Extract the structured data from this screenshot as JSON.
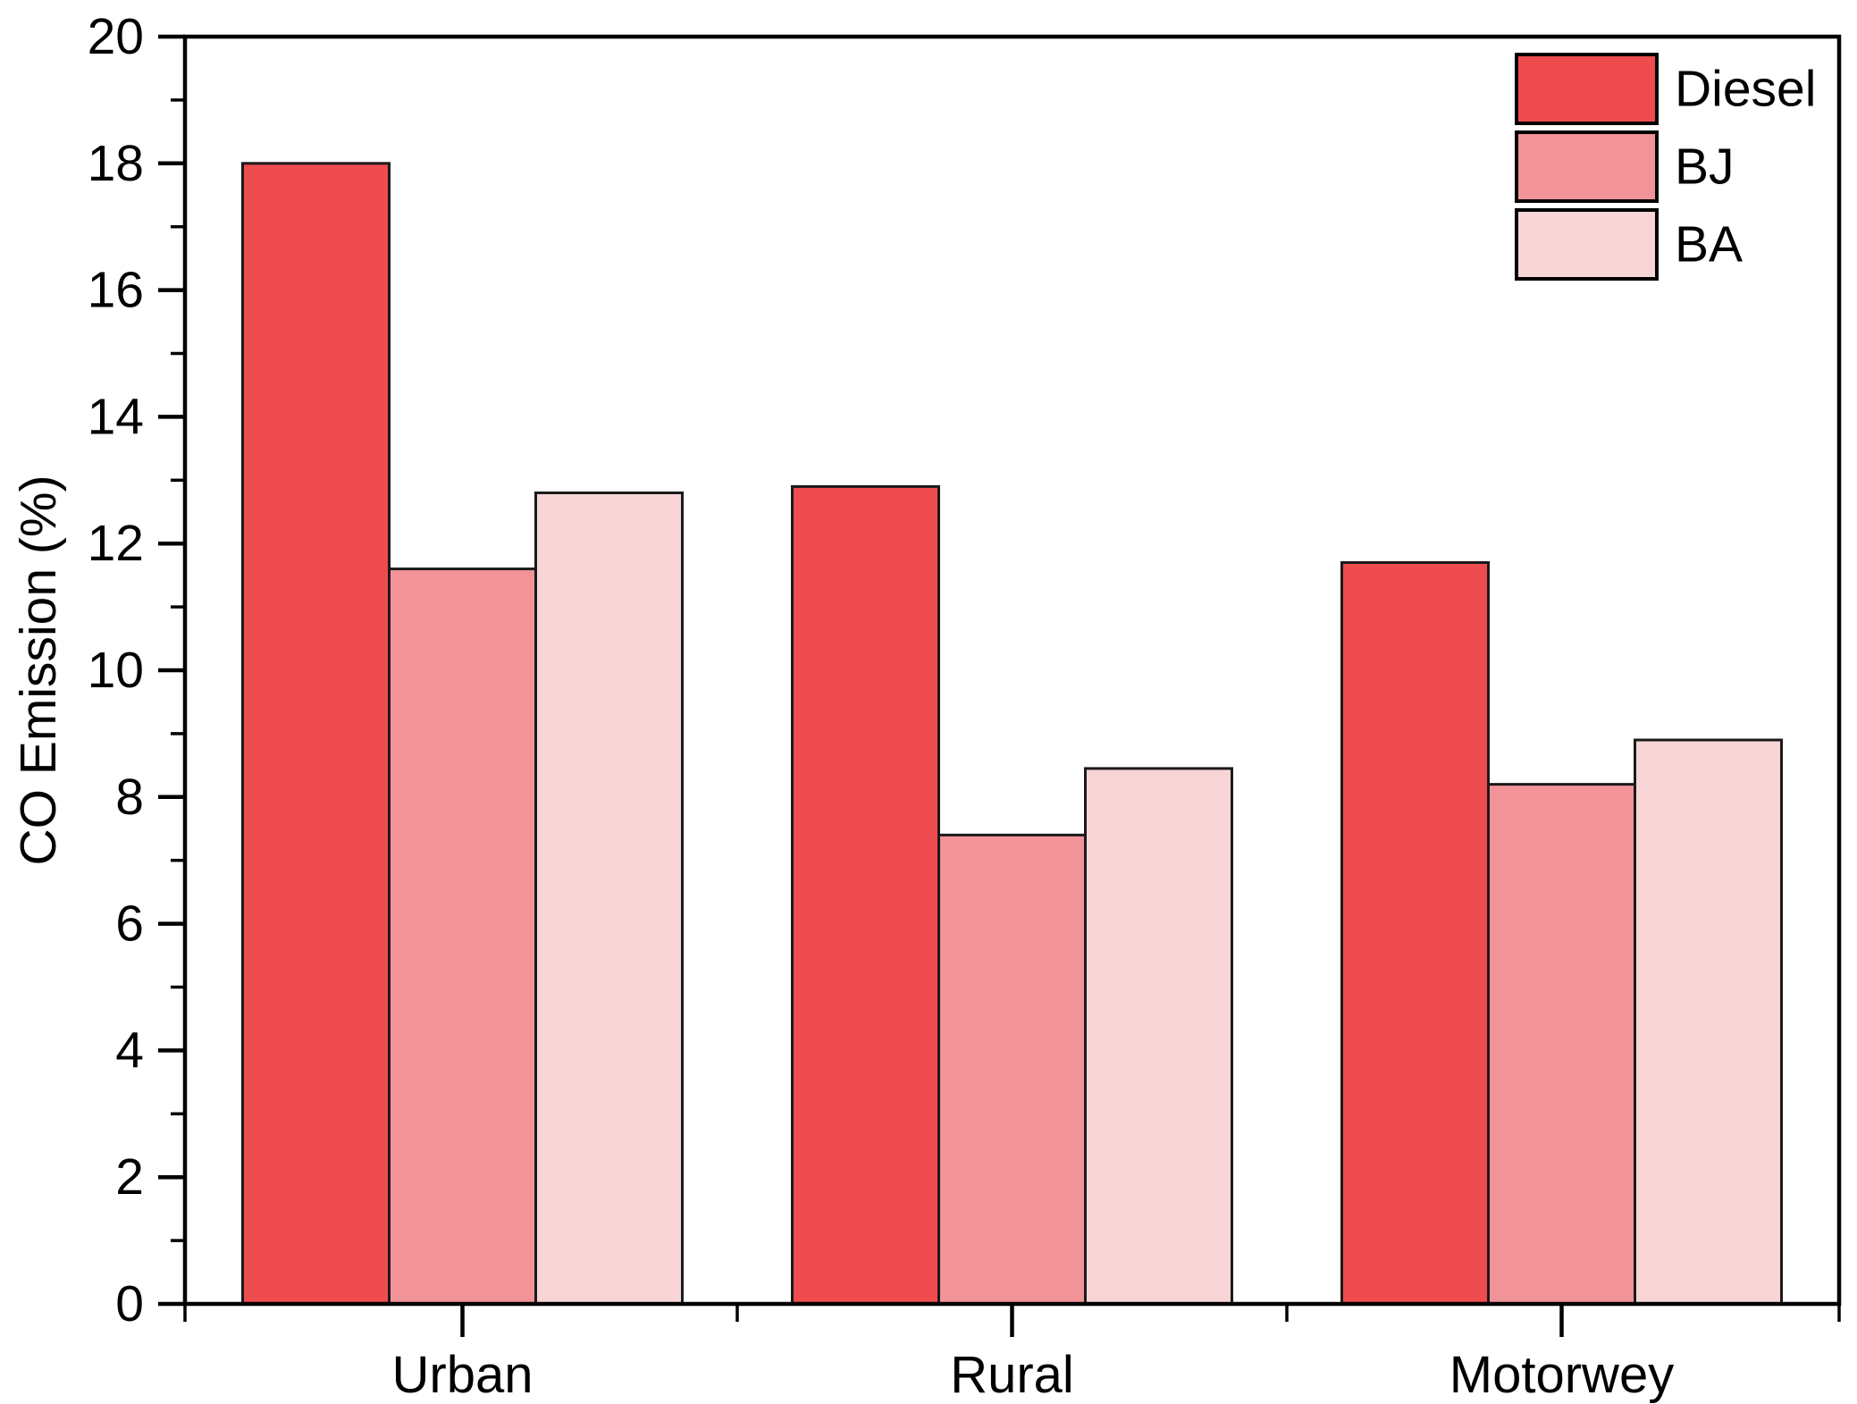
{
  "chart_data": {
    "type": "bar",
    "title": "",
    "xlabel": "",
    "ylabel": "CO Emission (%)",
    "categories": [
      "Urban",
      "Rural",
      "Motorwey"
    ],
    "series": [
      {
        "name": "Diesel",
        "color": "#EE4C4F",
        "values": [
          18.0,
          12.9,
          11.7
        ]
      },
      {
        "name": "BJ",
        "color": "#F2939A",
        "values": [
          11.6,
          7.4,
          8.2
        ]
      },
      {
        "name": "BA",
        "color": "#F7D5D7",
        "values": [
          12.8,
          8.45,
          8.9
        ]
      }
    ],
    "ylim": [
      0,
      20
    ],
    "yticks_major": [
      0,
      2,
      4,
      6,
      8,
      10,
      12,
      14,
      16,
      18,
      20
    ],
    "ytick_minor_step": 1,
    "grid": false,
    "legend_position": "top-right",
    "bar_edge_color": "#1A1A1A",
    "axis_color": "#000000",
    "background_color": "#FFFFFF"
  }
}
